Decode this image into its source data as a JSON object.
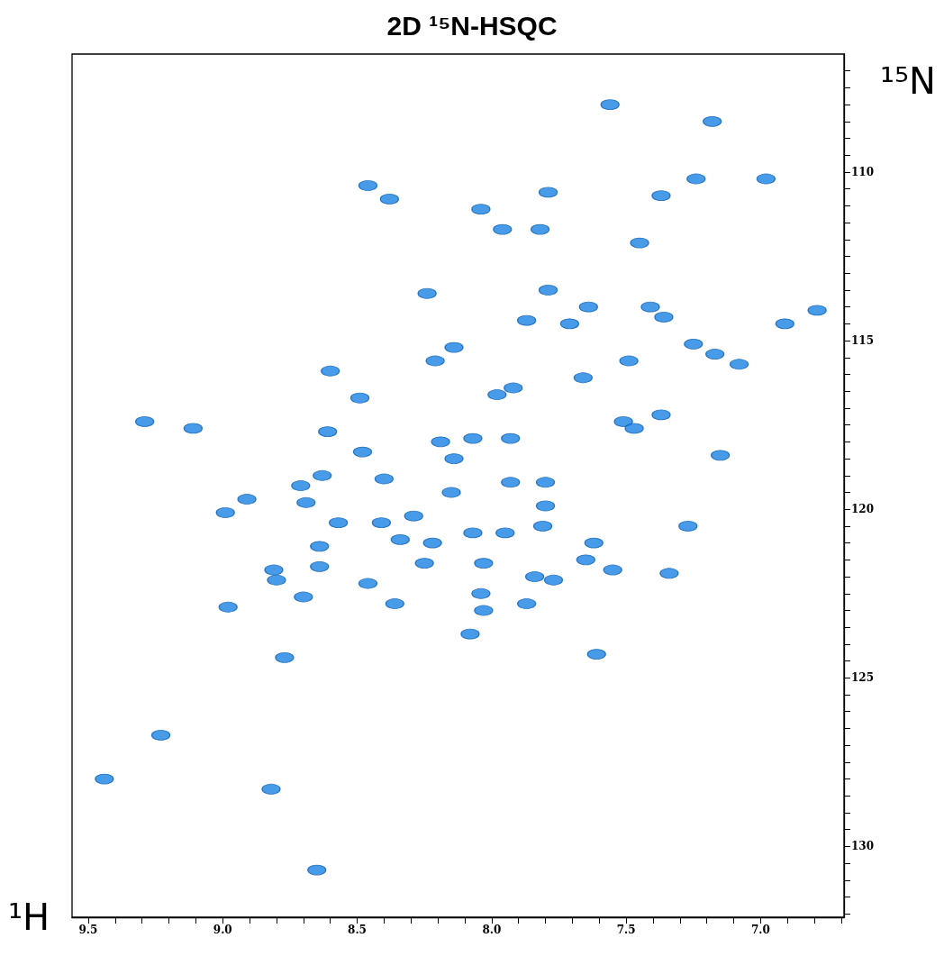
{
  "chart_data": {
    "type": "scatter",
    "title": "2D ¹⁵N-HSQC",
    "xlabel": "¹H",
    "ylabel": "¹⁵N",
    "xlim": [
      9.56,
      6.69
    ],
    "ylim": [
      132.1,
      106.5
    ],
    "xticks": [
      9.5,
      {
        "value": 9.4,
        "label": null
      },
      {
        "value": 9.3,
        "label": null
      },
      {
        "value": 9.2,
        "label": null
      },
      {
        "value": 9.1,
        "label": null
      },
      {
        "value": 9,
        "label": "9.0"
      },
      {
        "value": 8.9,
        "label": null
      },
      {
        "value": 8.8,
        "label": null
      },
      {
        "value": 8.7,
        "label": null
      },
      {
        "value": 8.6,
        "label": null
      },
      8.5,
      {
        "value": 8.4,
        "label": null
      },
      {
        "value": 8.3,
        "label": null
      },
      {
        "value": 8.2,
        "label": null
      },
      {
        "value": 8.1,
        "label": null
      },
      {
        "value": 8,
        "label": "8.0"
      },
      {
        "value": 7.9,
        "label": null
      },
      {
        "value": 7.8,
        "label": null
      },
      {
        "value": 7.7,
        "label": null
      },
      {
        "value": 7.6,
        "label": null
      },
      7.5,
      {
        "value": 7.4,
        "label": null
      },
      {
        "value": 7.3,
        "label": null
      },
      {
        "value": 7.2,
        "label": null
      },
      {
        "value": 7.1,
        "label": null
      },
      {
        "value": 7,
        "label": "7.0"
      },
      {
        "value": 6.9,
        "label": null
      },
      {
        "value": 6.8,
        "label": null
      },
      {
        "value": 6.7,
        "label": null
      }
    ],
    "yticks": [
      {
        "value": 107,
        "label": null
      },
      {
        "value": 107.5,
        "label": null
      },
      {
        "value": 108,
        "label": null
      },
      {
        "value": 108.5,
        "label": null
      },
      {
        "value": 109,
        "label": null
      },
      {
        "value": 109.5,
        "label": null
      },
      110,
      {
        "value": 110.5,
        "label": null
      },
      {
        "value": 111,
        "label": null
      },
      {
        "value": 111.5,
        "label": null
      },
      {
        "value": 112,
        "label": null
      },
      {
        "value": 112.5,
        "label": null
      },
      {
        "value": 113,
        "label": null
      },
      {
        "value": 113.5,
        "label": null
      },
      {
        "value": 114,
        "label": null
      },
      {
        "value": 114.5,
        "label": null
      },
      115,
      {
        "value": 115.5,
        "label": null
      },
      {
        "value": 116,
        "label": null
      },
      {
        "value": 116.5,
        "label": null
      },
      {
        "value": 117,
        "label": null
      },
      {
        "value": 117.5,
        "label": null
      },
      {
        "value": 118,
        "label": null
      },
      {
        "value": 118.5,
        "label": null
      },
      {
        "value": 119,
        "label": null
      },
      {
        "value": 119.5,
        "label": null
      },
      120,
      {
        "value": 120.5,
        "label": null
      },
      {
        "value": 121,
        "label": null
      },
      {
        "value": 121.5,
        "label": null
      },
      {
        "value": 122,
        "label": null
      },
      {
        "value": 122.5,
        "label": null
      },
      {
        "value": 123,
        "label": null
      },
      {
        "value": 123.5,
        "label": null
      },
      {
        "value": 124,
        "label": null
      },
      {
        "value": 124.5,
        "label": null
      },
      125,
      {
        "value": 125.5,
        "label": null
      },
      {
        "value": 126,
        "label": null
      },
      {
        "value": 126.5,
        "label": null
      },
      {
        "value": 127,
        "label": null
      },
      {
        "value": 127.5,
        "label": null
      },
      {
        "value": 128,
        "label": null
      },
      {
        "value": 128.5,
        "label": null
      },
      {
        "value": 129,
        "label": null
      },
      {
        "value": 129.5,
        "label": null
      },
      130,
      {
        "value": 130.5,
        "label": null
      },
      {
        "value": 131,
        "label": null
      },
      {
        "value": 131.5,
        "label": null
      },
      {
        "value": 132,
        "label": null
      }
    ],
    "grid": false,
    "marker": "circle",
    "series": [
      {
        "color": "#1a82e2",
        "x": [
          7.56,
          7.18,
          7.24,
          6.98,
          8.46,
          8.38,
          7.79,
          7.37,
          8.04,
          7.96,
          7.82,
          7.45,
          8.24,
          7.79,
          7.64,
          7.41,
          7.36,
          7.87,
          7.71,
          6.91,
          6.79,
          8.14,
          7.25,
          7.17,
          8.21,
          7.49,
          7.08,
          8.6,
          7.66,
          8.49,
          7.92,
          7.98,
          9.29,
          9.11,
          8.61,
          7.51,
          7.37,
          7.47,
          8.19,
          8.07,
          7.93,
          8.48,
          8.14,
          7.15,
          8.4,
          8.63,
          8.71,
          8.91,
          8.15,
          7.93,
          7.8,
          8.69,
          8.99,
          7.8,
          8.29,
          8.57,
          8.41,
          7.81,
          7.27,
          8.34,
          8.22,
          8.07,
          7.95,
          8.64,
          7.62,
          8.25,
          8.03,
          8.64,
          7.65,
          8.81,
          8.8,
          7.84,
          7.77,
          7.55,
          7.34,
          8.46,
          8.7,
          8.04,
          8.36,
          7.87,
          8.98,
          8.03,
          8.08,
          7.61,
          8.77,
          9.23,
          9.44,
          8.82,
          8.65
        ],
        "values": [
          108,
          108.5,
          110.2,
          110.2,
          110.4,
          110.8,
          110.6,
          110.7,
          111.1,
          111.7,
          111.7,
          112.1,
          113.6,
          113.5,
          114,
          114,
          114.3,
          114.4,
          114.5,
          114.5,
          114.1,
          115.2,
          115.1,
          115.4,
          115.6,
          115.6,
          115.7,
          115.9,
          116.1,
          116.7,
          116.4,
          116.6,
          117.4,
          117.6,
          117.7,
          117.4,
          117.2,
          117.6,
          118,
          117.9,
          117.9,
          118.3,
          118.5,
          118.4,
          119.1,
          119,
          119.3,
          119.7,
          119.5,
          119.2,
          119.2,
          119.8,
          120.1,
          119.9,
          120.2,
          120.4,
          120.4,
          120.5,
          120.5,
          120.9,
          121,
          120.7,
          120.7,
          121.1,
          121,
          121.6,
          121.6,
          121.7,
          121.5,
          121.8,
          122.1,
          122,
          122.1,
          121.8,
          121.9,
          122.2,
          122.6,
          122.5,
          122.8,
          122.8,
          122.9,
          123,
          123.7,
          124.3,
          124.4,
          126.7,
          128,
          128.3,
          130.7
        ]
      }
    ]
  }
}
